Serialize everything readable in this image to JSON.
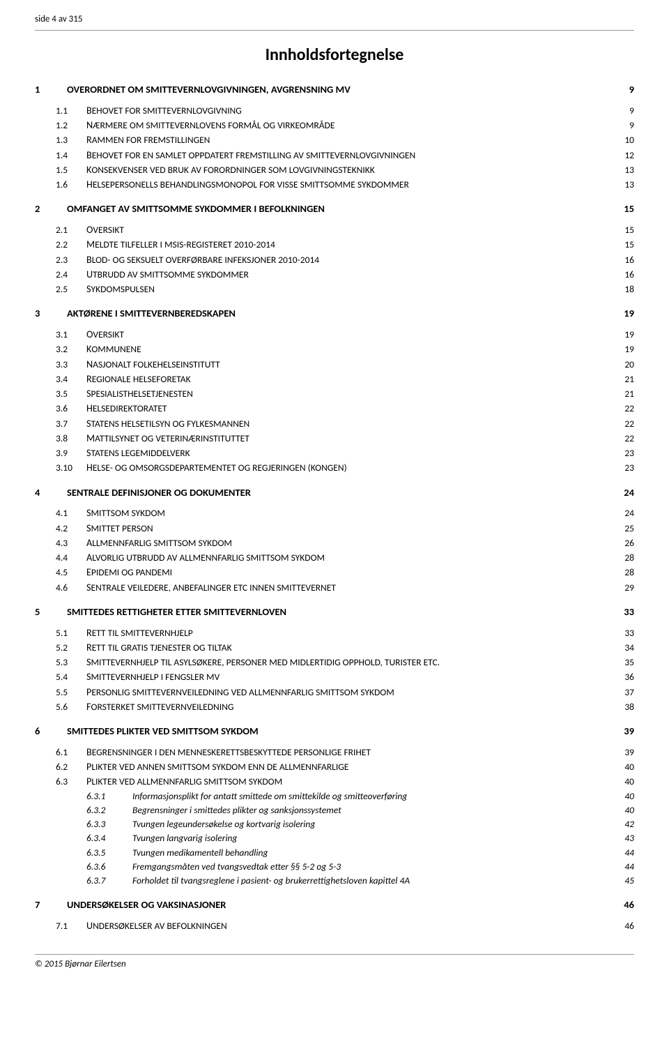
{
  "header": {
    "text": "side 4 av 315"
  },
  "title": "Innholdsfortegnelse",
  "footer": "© 2015 Bjørnar Eilertsen",
  "toc": [
    {
      "level": 1,
      "num": "1",
      "label": "OVERORDNET OM SMITTEVERNLOVGIVNINGEN, AVGRENSNING MV",
      "page": "9"
    },
    {
      "level": 2,
      "num": "1.1",
      "label": "Behovet for smittevernlovgivning",
      "page": "9"
    },
    {
      "level": 2,
      "num": "1.2",
      "label": "Nærmere om smittevernlovens formål og virkeområde",
      "page": "9"
    },
    {
      "level": 2,
      "num": "1.3",
      "label": "Rammen for fremstillingen",
      "page": "10"
    },
    {
      "level": 2,
      "num": "1.4",
      "label": "Behovet for en samlet oppdatert fremstilling av smittevernlovgivningen",
      "page": "12"
    },
    {
      "level": 2,
      "num": "1.5",
      "label": "Konsekvenser ved bruk av forordninger som lovgivningsteknikk",
      "page": "13"
    },
    {
      "level": 2,
      "num": "1.6",
      "label": "Helsepersonells behandlingsmonopol for visse smittsomme sykdommer",
      "page": "13"
    },
    {
      "level": 1,
      "num": "2",
      "label": "OMFANGET AV SMITTSOMME SYKDOMMER I BEFOLKNINGEN",
      "page": "15"
    },
    {
      "level": 2,
      "num": "2.1",
      "label": "Oversikt",
      "page": "15"
    },
    {
      "level": 2,
      "num": "2.2",
      "label": "Meldte tilfeller i MSIS-registeret 2010-2014",
      "page": "15",
      "hasNum": true
    },
    {
      "level": 2,
      "num": "2.3",
      "label": "Blod- og seksuelt overførbare infeksjoner 2010-2014",
      "page": "16",
      "hasNum": true
    },
    {
      "level": 2,
      "num": "2.4",
      "label": "Utbrudd av smittsomme sykdommer",
      "page": "16"
    },
    {
      "level": 2,
      "num": "2.5",
      "label": "Sykdomspulsen",
      "page": "18"
    },
    {
      "level": 1,
      "num": "3",
      "label": "AKTØRENE I SMITTEVERNBEREDSKAPEN",
      "page": "19"
    },
    {
      "level": 2,
      "num": "3.1",
      "label": "Oversikt",
      "page": "19"
    },
    {
      "level": 2,
      "num": "3.2",
      "label": "Kommunene",
      "page": "19"
    },
    {
      "level": 2,
      "num": "3.3",
      "label": "Nasjonalt folkehelseinstitutt",
      "page": "20"
    },
    {
      "level": 2,
      "num": "3.4",
      "label": "Regionale helseforetak",
      "page": "21"
    },
    {
      "level": 2,
      "num": "3.5",
      "label": "Spesialisthelsetjenesten",
      "page": "21"
    },
    {
      "level": 2,
      "num": "3.6",
      "label": "Helsedirektoratet",
      "page": "22"
    },
    {
      "level": 2,
      "num": "3.7",
      "label": "Statens helsetilsyn og Fylkesmannen",
      "page": "22"
    },
    {
      "level": 2,
      "num": "3.8",
      "label": "Mattilsynet og Veterinærinstituttet",
      "page": "22"
    },
    {
      "level": 2,
      "num": "3.9",
      "label": "Statens legemiddelverk",
      "page": "23"
    },
    {
      "level": 2,
      "num": "3.10",
      "label": "Helse- og omsorgsdepartementet og Regjeringen (Kongen)",
      "page": "23"
    },
    {
      "level": 1,
      "num": "4",
      "label": "SENTRALE DEFINISJONER OG DOKUMENTER",
      "page": "24"
    },
    {
      "level": 2,
      "num": "4.1",
      "label": "Smittsom sykdom",
      "page": "24"
    },
    {
      "level": 2,
      "num": "4.2",
      "label": "Smittet person",
      "page": "25"
    },
    {
      "level": 2,
      "num": "4.3",
      "label": "Allmennfarlig smittsom sykdom",
      "page": "26"
    },
    {
      "level": 2,
      "num": "4.4",
      "label": "Alvorlig utbrudd av allmennfarlig smittsom sykdom",
      "page": "28"
    },
    {
      "level": 2,
      "num": "4.5",
      "label": "Epidemi og pandemi",
      "page": "28"
    },
    {
      "level": 2,
      "num": "4.6",
      "label": "Sentrale veiledere, anbefalinger etc innen smittevernet",
      "page": "29"
    },
    {
      "level": 1,
      "num": "5",
      "label": "SMITTEDES RETTIGHETER ETTER SMITTEVERNLOVEN",
      "page": "33"
    },
    {
      "level": 2,
      "num": "5.1",
      "label": "Rett til smittevernhjelp",
      "page": "33"
    },
    {
      "level": 2,
      "num": "5.2",
      "label": "Rett til gratis tjenester og tiltak",
      "page": "34"
    },
    {
      "level": 2,
      "num": "5.3",
      "label": "Smittevernhjelp til asylsøkere, personer med midlertidig opphold, turister etc.",
      "page": "35"
    },
    {
      "level": 2,
      "num": "5.4",
      "label": "Smittevernhjelp i fengsler mv",
      "page": "36"
    },
    {
      "level": 2,
      "num": "5.5",
      "label": "Personlig smittevernveiledning ved allmennfarlig smittsom sykdom",
      "page": "37"
    },
    {
      "level": 2,
      "num": "5.6",
      "label": "Forsterket smittevernveiledning",
      "page": "38"
    },
    {
      "level": 1,
      "num": "6",
      "label": "SMITTEDES PLIKTER VED SMITTSOM SYKDOM",
      "page": "39"
    },
    {
      "level": 2,
      "num": "6.1",
      "label": "Begrensninger i den menneskerettsbeskyttede personlige frihet",
      "page": "39"
    },
    {
      "level": 2,
      "num": "6.2",
      "label": "Plikter ved annen smittsom sykdom enn de allmennfarlige",
      "page": "40"
    },
    {
      "level": 2,
      "num": "6.3",
      "label": "Plikter ved allmennfarlig smittsom sykdom",
      "page": "40"
    },
    {
      "level": 3,
      "num": "6.3.1",
      "label": "Informasjonsplikt for antatt smittede om smittekilde og smitteoverføring",
      "page": "40"
    },
    {
      "level": 3,
      "num": "6.3.2",
      "label": "Begrensninger i smittedes plikter og sanksjonssystemet",
      "page": "40"
    },
    {
      "level": 3,
      "num": "6.3.3",
      "label": "Tvungen legeundersøkelse og kortvarig isolering",
      "page": "42"
    },
    {
      "level": 3,
      "num": "6.3.4",
      "label": "Tvungen langvarig isolering",
      "page": "43"
    },
    {
      "level": 3,
      "num": "6.3.5",
      "label": "Tvungen medikamentell behandling",
      "page": "44"
    },
    {
      "level": 3,
      "num": "6.3.6",
      "label": "Fremgangsmåten ved tvangsvedtak etter §§ 5-2 og 5-3",
      "page": "44"
    },
    {
      "level": 3,
      "num": "6.3.7",
      "label": "Forholdet til tvangsreglene i pasient- og brukerrettighetsloven kapittel 4A",
      "page": "45"
    },
    {
      "level": 1,
      "num": "7",
      "label": "UNDERSØKELSER OG VAKSINASJONER",
      "page": "46"
    },
    {
      "level": 2,
      "num": "7.1",
      "label": "Undersøkelser av befolkningen",
      "page": "46"
    }
  ]
}
